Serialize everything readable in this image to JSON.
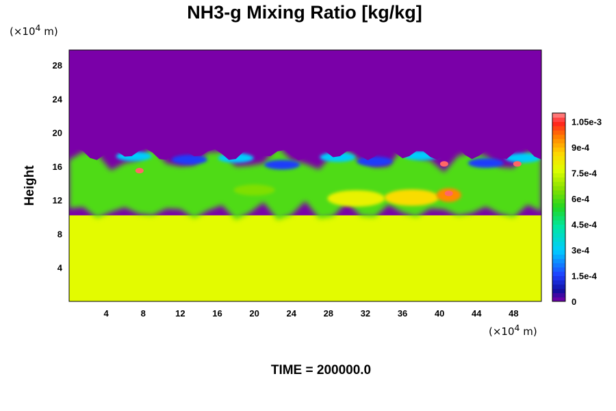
{
  "chart_data": {
    "type": "heatmap",
    "title": "NH3-g Mixing Ratio [kg/kg]",
    "ylabel": "Height",
    "y_unit_prefix": "(×10",
    "y_unit_exp": "4",
    "y_unit_suffix": " m)",
    "x_unit_prefix": "(×10",
    "x_unit_exp": "4",
    "x_unit_suffix": " m)",
    "xlim": [
      0,
      51
    ],
    "ylim": [
      0,
      29.8
    ],
    "x_ticks": [
      4,
      8,
      12,
      16,
      20,
      24,
      28,
      32,
      36,
      40,
      44,
      48
    ],
    "y_ticks": [
      4,
      8,
      12,
      16,
      20,
      24,
      28
    ],
    "colorbar": {
      "min": 0,
      "max": 0.0011,
      "tick_values": [
        0,
        0.00015,
        0.0003,
        0.00045,
        0.0006,
        0.00075,
        0.0009,
        0.00105
      ],
      "tick_labels": [
        "0",
        "1.5e-4",
        "3e-4",
        "4.5e-4",
        "6e-4",
        "7.5e-4",
        "9e-4",
        "1.05e-3"
      ]
    },
    "field_summary": {
      "upper_layer_value": 0,
      "lower_layer_value": 0.00078,
      "interface_height_min": 14.5,
      "interface_height_max": 18.5,
      "mixed_layer_value": 0.0006
    },
    "time_label": "TIME = 200000.0"
  }
}
